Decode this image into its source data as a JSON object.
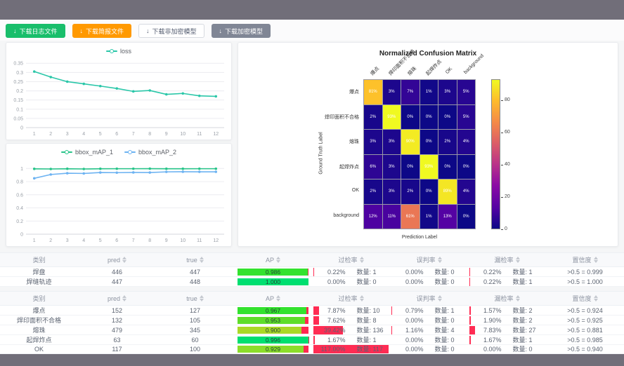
{
  "toolbar": {
    "buttons": [
      {
        "id": "download-log-button",
        "label": "下载日志文件",
        "icon": "download-icon",
        "bg": "#19be6b",
        "fg": "#ffffff",
        "border": "#19be6b"
      },
      {
        "id": "download-report-button",
        "label": "下载简报文件",
        "icon": "download-icon",
        "bg": "#ff9900",
        "fg": "#ffffff",
        "border": "#ff9900"
      },
      {
        "id": "download-plain-model-button",
        "label": "下载非加密模型",
        "icon": "download-icon",
        "bg": "#ffffff",
        "fg": "#515a6e",
        "border": "#d7dae0"
      },
      {
        "id": "download-encrypted-model-button",
        "label": "下载加密模型",
        "icon": "download-icon",
        "bg": "#808695",
        "fg": "#ffffff",
        "border": "#808695"
      }
    ]
  },
  "chart_data": [
    {
      "type": "line",
      "title": "loss",
      "x": [
        1,
        2,
        3,
        4,
        5,
        6,
        7,
        8,
        9,
        10,
        11,
        12
      ],
      "yticks": [
        "0",
        "0.05",
        "0.1",
        "0.15",
        "0.2",
        "0.25",
        "0.3",
        "0.35"
      ],
      "ymax": 0.37,
      "legend_position": "top",
      "grid": true,
      "series": [
        {
          "name": "loss",
          "color": "#2bc7a9",
          "values": [
            0.305,
            0.275,
            0.25,
            0.238,
            0.226,
            0.213,
            0.197,
            0.202,
            0.181,
            0.186,
            0.173,
            0.17
          ]
        }
      ]
    },
    {
      "type": "line",
      "title": "bbox_mAP",
      "x": [
        1,
        2,
        3,
        4,
        5,
        6,
        7,
        8,
        9,
        10,
        11,
        12
      ],
      "yticks": [
        "0",
        "0.2",
        "0.4",
        "0.6",
        "0.8",
        "1"
      ],
      "ymax": 1.12,
      "legend_position": "top",
      "grid": true,
      "series": [
        {
          "name": "bbox_mAP_1",
          "color": "#27c489",
          "values": [
            0.994,
            0.992,
            0.995,
            0.992,
            0.995,
            0.996,
            0.996,
            0.997,
            0.995,
            0.995,
            0.996,
            0.996
          ]
        },
        {
          "name": "bbox_mAP_2",
          "color": "#6db3f2",
          "values": [
            0.85,
            0.908,
            0.927,
            0.924,
            0.938,
            0.936,
            0.939,
            0.938,
            0.948,
            0.95,
            0.949,
            0.949
          ]
        }
      ]
    }
  ],
  "confusion_matrix": {
    "title": "Normalized Confusion Matrix",
    "xlabel": "Prediction Label",
    "ylabel": "Ground Truth Label",
    "labels": [
      "爆点",
      "焊印面积不合格",
      "熔珠",
      "起焊炸点",
      "OK",
      "background"
    ],
    "vmax": 93,
    "matrix_pct": [
      [
        81,
        3,
        7,
        1,
        3,
        5
      ],
      [
        2,
        93,
        0,
        0,
        0,
        5
      ],
      [
        3,
        3,
        90,
        0,
        2,
        4
      ],
      [
        6,
        3,
        0,
        93,
        0,
        0
      ],
      [
        2,
        3,
        2,
        0,
        89,
        4
      ],
      [
        12,
        11,
        61,
        1,
        13,
        0
      ]
    ],
    "colorbar_ticks": [
      0,
      20,
      40,
      60,
      80
    ]
  },
  "tables": {
    "headers": [
      {
        "label": "类别",
        "sortable": false
      },
      {
        "label": "pred",
        "sortable": true
      },
      {
        "label": "true",
        "sortable": true
      },
      {
        "label": "AP",
        "sortable": true
      },
      {
        "label": "过检率",
        "sortable": true
      },
      {
        "label": "误判率",
        "sortable": true
      },
      {
        "label": "漏检率",
        "sortable": true
      },
      {
        "label": "置信度",
        "sortable": true
      }
    ],
    "groups": [
      {
        "rows": [
          {
            "label": "焊盘",
            "pred": "446",
            "true": "447",
            "ap": 0.986,
            "ap_text": "0.986",
            "rates": [
              {
                "pct": 0.22,
                "pct_text": "0.22%",
                "count_text": "数量: 1"
              },
              {
                "pct": 0.0,
                "pct_text": "0.00%",
                "count_text": "数量: 0"
              },
              {
                "pct": 0.22,
                "pct_text": "0.22%",
                "count_text": "数量: 1"
              }
            ],
            "conf": ">0.5 = 0.999"
          },
          {
            "label": "焊缝轨迹",
            "pred": "447",
            "true": "448",
            "ap": 1.0,
            "ap_text": "1.000",
            "rates": [
              {
                "pct": 0.0,
                "pct_text": "0.00%",
                "count_text": "数量: 0"
              },
              {
                "pct": 0.0,
                "pct_text": "0.00%",
                "count_text": "数量: 0"
              },
              {
                "pct": 0.22,
                "pct_text": "0.22%",
                "count_text": "数量: 1"
              }
            ],
            "conf": ">0.5 = 1.000"
          }
        ]
      },
      {
        "rows": [
          {
            "label": "爆点",
            "pred": "152",
            "true": "127",
            "ap": 0.967,
            "ap_text": "0.967",
            "rates": [
              {
                "pct": 7.87,
                "pct_text": "7.87%",
                "count_text": "数量: 10"
              },
              {
                "pct": 0.79,
                "pct_text": "0.79%",
                "count_text": "数量: 1"
              },
              {
                "pct": 1.57,
                "pct_text": "1.57%",
                "count_text": "数量: 2"
              }
            ],
            "conf": ">0.5 = 0.924"
          },
          {
            "label": "焊印面积不合格",
            "pred": "132",
            "true": "105",
            "ap": 0.953,
            "ap_text": "0.953",
            "rates": [
              {
                "pct": 7.62,
                "pct_text": "7.62%",
                "count_text": "数量: 8"
              },
              {
                "pct": 0.0,
                "pct_text": "0.00%",
                "count_text": "数量: 0"
              },
              {
                "pct": 1.9,
                "pct_text": "1.90%",
                "count_text": "数量: 2"
              }
            ],
            "conf": ">0.5 = 0.925"
          },
          {
            "label": "熔珠",
            "pred": "479",
            "true": "345",
            "ap": 0.9,
            "ap_text": "0.900",
            "rates": [
              {
                "pct": 39.42,
                "pct_text": "39.42%",
                "count_text": "数量: 136"
              },
              {
                "pct": 1.16,
                "pct_text": "1.16%",
                "count_text": "数量: 4"
              },
              {
                "pct": 7.83,
                "pct_text": "7.83%",
                "count_text": "数量: 27"
              }
            ],
            "conf": ">0.5 = 0.881"
          },
          {
            "label": "起焊炸点",
            "pred": "63",
            "true": "60",
            "ap": 0.996,
            "ap_text": "0.996",
            "rates": [
              {
                "pct": 1.67,
                "pct_text": "1.67%",
                "count_text": "数量: 1"
              },
              {
                "pct": 0.0,
                "pct_text": "0.00%",
                "count_text": "数量: 0"
              },
              {
                "pct": 1.67,
                "pct_text": "1.67%",
                "count_text": "数量: 1"
              }
            ],
            "conf": ">0.5 = 0.985"
          },
          {
            "label": "OK",
            "pred": "117",
            "true": "100",
            "ap": 0.929,
            "ap_text": "0.929",
            "rates": [
              {
                "pct": 117.0,
                "pct_text": "117.00%",
                "count_text": "数量: 117"
              },
              {
                "pct": 0.0,
                "pct_text": "0.00%",
                "count_text": "数量: 0"
              },
              {
                "pct": 0.0,
                "pct_text": "0.00%",
                "count_text": "数量: 0"
              }
            ],
            "conf": ">0.5 = 0.940"
          }
        ]
      }
    ]
  }
}
